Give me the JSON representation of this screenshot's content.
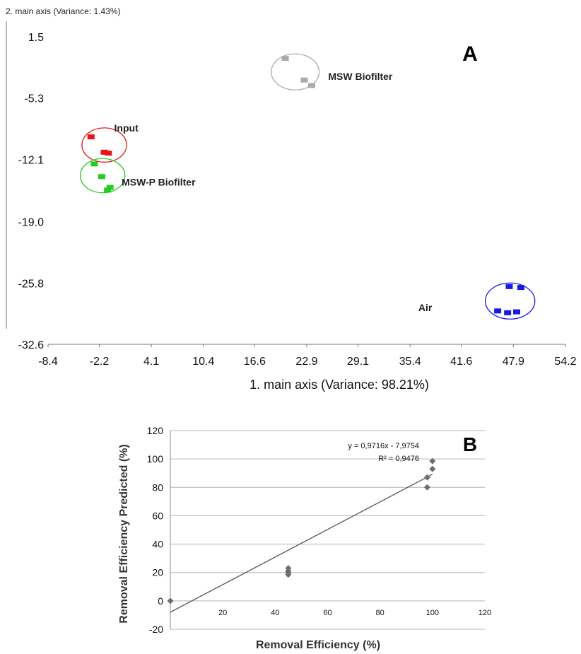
{
  "figure": {
    "panel_a_letter": "A",
    "panel_b_letter": "B"
  },
  "chart_data": [
    {
      "type": "scatter",
      "panel": "A",
      "title": "",
      "xlabel": "1. main axis (Variance: 98.21%)",
      "ylabel": "2. main axis (Variance: 1.43%)",
      "xlim": [
        -8.4,
        54.2
      ],
      "ylim": [
        -32.6,
        1.5
      ],
      "x_ticks": [
        -8.4,
        -2.2,
        4.1,
        10.4,
        16.6,
        22.9,
        29.1,
        35.4,
        41.6,
        47.9,
        54.2
      ],
      "x_tick_labels": [
        "-8.4",
        "-2.2",
        "4.1",
        "10.4",
        "16.6",
        "22.9",
        "29.1",
        "35.4",
        "41.6",
        "47.9",
        "54.2"
      ],
      "y_ticks": [
        1.5,
        -5.3,
        -12.1,
        -19.0,
        -25.8,
        -32.6
      ],
      "y_tick_labels": [
        "1.5",
        "-5.3",
        "-12.1",
        "-19.0",
        "-25.8",
        "-32.6"
      ],
      "grid": false,
      "series": [
        {
          "name": "Input",
          "color": "#e8141c",
          "ellipse": {
            "cx": -1.6,
            "cy": -10.5,
            "rx": 2.7,
            "ry": 1.9
          },
          "points": [
            [
              -3.2,
              -9.6
            ],
            [
              -1.6,
              -11.3
            ],
            [
              -1.1,
              -11.4
            ]
          ],
          "label_pos": [
            -0.4,
            -9.0
          ]
        },
        {
          "name": "MSW-P Biofilter",
          "color": "#22cc22",
          "ellipse": {
            "cx": -1.8,
            "cy": -13.9,
            "rx": 2.7,
            "ry": 1.9
          },
          "points": [
            [
              -2.8,
              -12.6
            ],
            [
              -1.9,
              -14.0
            ],
            [
              -0.9,
              -15.2
            ],
            [
              -1.2,
              -15.5
            ]
          ],
          "label_pos": [
            0.5,
            -15.0
          ]
        },
        {
          "name": "MSW Biofilter",
          "color": "#aaaaaa",
          "ellipse": {
            "cx": 21.5,
            "cy": -2.4,
            "rx": 2.9,
            "ry": 2.0
          },
          "points": [
            [
              20.3,
              -0.9
            ],
            [
              22.6,
              -3.3
            ],
            [
              23.5,
              -3.9
            ]
          ],
          "label_pos": [
            25.5,
            -3.3
          ]
        },
        {
          "name": "Air",
          "color": "#1818e8",
          "ellipse": {
            "cx": 47.5,
            "cy": -27.8,
            "rx": 3.0,
            "ry": 2.0
          },
          "points": [
            [
              47.4,
              -26.2
            ],
            [
              48.8,
              -26.3
            ],
            [
              46.0,
              -28.9
            ],
            [
              47.2,
              -29.1
            ],
            [
              48.3,
              -29.0
            ]
          ],
          "label_pos": [
            36.4,
            -28.9
          ]
        }
      ]
    },
    {
      "type": "scatter",
      "panel": "B",
      "title": "",
      "xlabel": "Removal Efficiency (%)",
      "ylabel": "Removal Efficiency Predicted (%)",
      "xlim": [
        0,
        120
      ],
      "ylim": [
        -20,
        120
      ],
      "x_ticks": [
        0,
        20,
        40,
        60,
        80,
        100,
        120
      ],
      "x_tick_labels": [
        "0",
        "20",
        "40",
        "60",
        "80",
        "100",
        "120"
      ],
      "y_ticks": [
        -20,
        0,
        20,
        40,
        60,
        80,
        100,
        120
      ],
      "y_tick_labels": [
        "-20",
        "0",
        "20",
        "40",
        "60",
        "80",
        "100",
        "120"
      ],
      "grid": true,
      "points": [
        [
          0,
          0
        ],
        [
          45,
          23
        ],
        [
          45,
          21
        ],
        [
          45,
          20
        ],
        [
          45,
          18.5
        ],
        [
          98,
          87
        ],
        [
          98,
          80
        ],
        [
          100,
          98.5
        ],
        [
          100,
          93
        ]
      ],
      "trendline": {
        "slope": 0.9716,
        "intercept": -7.9754,
        "x_range": [
          0,
          100
        ]
      },
      "annotations": [
        "y = 0,9716x - 7,9754",
        "R² = 0,9476"
      ],
      "marker_color": "#6d6d6d",
      "line_color": "#555555"
    }
  ]
}
